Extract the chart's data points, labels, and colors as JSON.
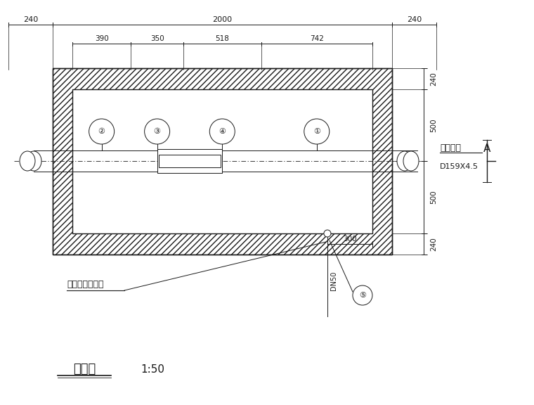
{
  "bg_color": "#ffffff",
  "line_color": "#1a1a1a",
  "title": "平面图",
  "scale": "1:50",
  "dim_top_total": "2000",
  "dim_top_left": "240",
  "dim_top_right": "240",
  "dim_sub": [
    "390",
    "350",
    "518",
    "742"
  ],
  "dim_right": [
    "240",
    "500",
    "500",
    "240"
  ],
  "note_left": "就近排入检查井",
  "note_right": "至配水井",
  "pipe_label": "D159X4.5",
  "drain_label": "DN50",
  "dim_300": "300",
  "section_label": "A"
}
